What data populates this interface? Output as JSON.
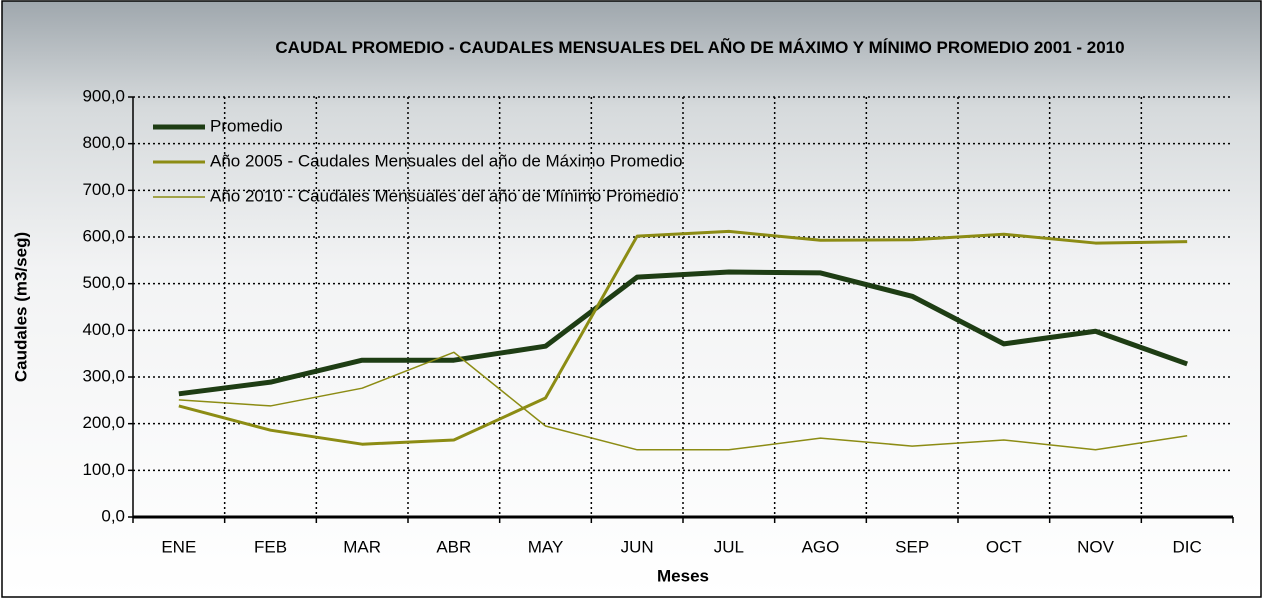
{
  "chart_data": {
    "type": "line",
    "title": "CAUDAL PROMEDIO - CAUDALES MENSUALES DEL AÑO DE MÁXIMO Y MÍNIMO PROMEDIO 2001 - 2010",
    "x_label": "Meses",
    "y_label": "Caudales (m3/seg)",
    "categories": [
      "ENE",
      "FEB",
      "MAR",
      "ABR",
      "MAY",
      "JUN",
      "JUL",
      "AGO",
      "SEP",
      "OCT",
      "NOV",
      "DIC"
    ],
    "series": [
      {
        "name": "Promedio",
        "color": "#1e3d14",
        "linewidth": 5,
        "values": [
          264,
          289,
          336,
          336,
          366,
          514,
          525,
          523,
          473,
          371,
          398,
          328
        ]
      },
      {
        "name": "Año 2005 - Caudales Mensuales del año de Máximo Promedio",
        "color": "#8c8c14",
        "linewidth": 3,
        "values": [
          238,
          186,
          156,
          165,
          255,
          602,
          612,
          593,
          594,
          606,
          587,
          590
        ]
      },
      {
        "name": "Año 2010 - Caudales Mensuales del año de Mínimo Promedio",
        "color": "#8c8c14",
        "linewidth": 1.5,
        "values": [
          251,
          238,
          276,
          353,
          195,
          144,
          144,
          169,
          152,
          165,
          144,
          174
        ]
      }
    ],
    "ylim": [
      0,
      900
    ],
    "yticks": [
      {
        "value": 0,
        "label": "0,0"
      },
      {
        "value": 100,
        "label": "100,0"
      },
      {
        "value": 200,
        "label": "200,0"
      },
      {
        "value": 300,
        "label": "300,0"
      },
      {
        "value": 400,
        "label": "400,0"
      },
      {
        "value": 500,
        "label": "500,0"
      },
      {
        "value": 600,
        "label": "600,0"
      },
      {
        "value": 700,
        "label": "700,0"
      },
      {
        "value": 800,
        "label": "800,0"
      },
      {
        "value": 900,
        "label": "900,0"
      }
    ],
    "grid": true,
    "legend": "upper left"
  }
}
